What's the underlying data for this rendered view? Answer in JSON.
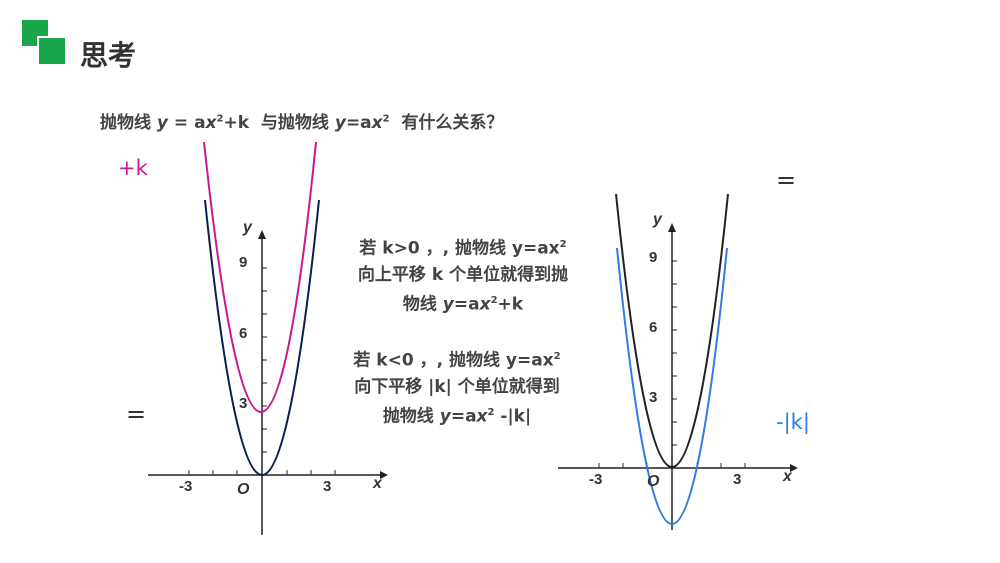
{
  "header": {
    "title": "思考",
    "logo_colors": [
      "#1aa64b",
      "#1aa64b"
    ]
  },
  "question": {
    "prefix": "抛物线",
    "eq1_y": "y",
    "eq1_mid": " = a",
    "eq1_x": "x",
    "eq1_exp": "2",
    "eq1_tail": "+k",
    "connector": "与抛物线",
    "eq2_y": "y",
    "eq2_mid": "=a",
    "eq2_x": "x",
    "eq2_exp": "2",
    "suffix": "有什么关系？"
  },
  "labels": {
    "plus_k": "+k",
    "minus_k": "-|k|",
    "equals_left": "=",
    "equals_right": "="
  },
  "colors": {
    "magenta": "#cc1a8c",
    "navy": "#0d1f4f",
    "blue": "#2f7de0",
    "black": "#222222"
  },
  "rules": {
    "up": {
      "line1_a": "若 k>0 ，, 抛物线 y=ax",
      "line1_exp": "2",
      "line2": "向上平移 k 个单位就得到抛",
      "line3_a": "物线 ",
      "line3_y": "y",
      "line3_b": "=a",
      "line3_x": "x",
      "line3_exp": "2",
      "line3_c": "+k"
    },
    "down": {
      "line1_a": "若 k<0 ，, 抛物线 y=ax",
      "line1_exp": "2",
      "line2": "向下平移 |k| 个单位就得到",
      "line3_a": "抛物线 ",
      "line3_y": "y",
      "line3_b": "=a",
      "line3_x": "x",
      "line3_exp": "2",
      "line3_c": " -|k|"
    }
  },
  "graph_left": {
    "axis_y": "y",
    "axis_x": "x",
    "origin": "O",
    "y_ticks": [
      "9",
      "6",
      "3"
    ],
    "x_ticks": [
      "-3",
      "3"
    ]
  },
  "graph_right": {
    "axis_y": "y",
    "axis_x": "x",
    "origin": "O",
    "y_ticks": [
      "9",
      "6",
      "3"
    ],
    "x_ticks": [
      "-3",
      "3"
    ]
  }
}
